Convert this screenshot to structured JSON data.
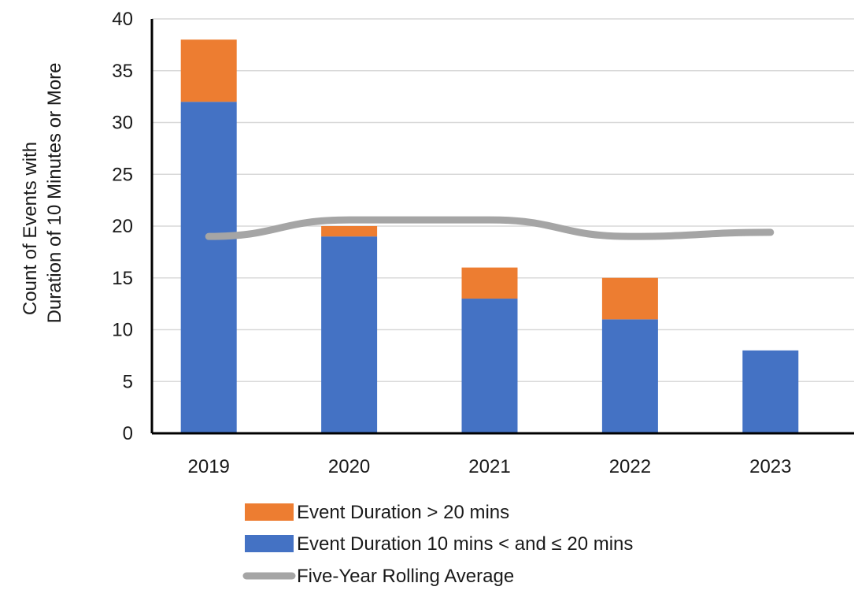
{
  "chart_data": {
    "type": "bar",
    "stacked": true,
    "categories": [
      "2019",
      "2020",
      "2021",
      "2022",
      "2023"
    ],
    "series": [
      {
        "name": "Event Duration 10 mins < and ≤ 20 mins",
        "type": "bar",
        "values": [
          32,
          19,
          13,
          11,
          8
        ],
        "color": "#4472C4"
      },
      {
        "name": "Event Duration > 20 mins",
        "type": "bar",
        "values": [
          6,
          1,
          3,
          4,
          0
        ],
        "color": "#ED7D31"
      },
      {
        "name": "Five-Year Rolling Average",
        "type": "line",
        "values": [
          19.0,
          20.6,
          20.6,
          19.0,
          19.4
        ],
        "color": "#A5A5A5"
      }
    ],
    "ylabel_lines": [
      "Count of Events with",
      "Duration of 10 Minutes or More"
    ],
    "xlabel": "",
    "ylim": [
      0,
      40
    ],
    "yticks": [
      0,
      5,
      10,
      15,
      20,
      25,
      30,
      35,
      40
    ],
    "grid": true,
    "legend_position": "bottom",
    "legend_order": [
      "Event Duration > 20 mins",
      "Event Duration 10 mins < and ≤ 20 mins",
      "Five-Year Rolling Average"
    ]
  }
}
